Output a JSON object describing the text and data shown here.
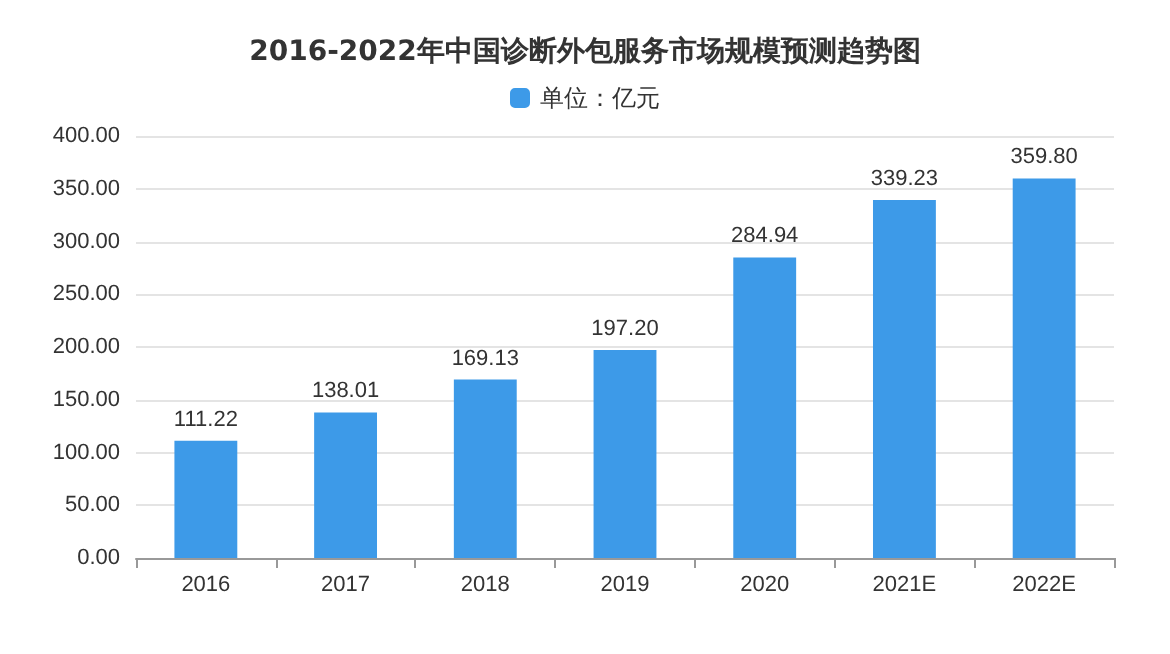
{
  "chart_data": {
    "type": "bar",
    "title": "2016-2022年中国诊断外包服务市场规模预测趋势图",
    "categories": [
      "2016",
      "2017",
      "2018",
      "2019",
      "2020",
      "2021E",
      "2022E"
    ],
    "series": [
      {
        "name": "单位：亿元",
        "color": "#3d9ae8",
        "values": [
          111.22,
          138.01,
          169.13,
          197.2,
          284.94,
          339.23,
          359.8
        ]
      }
    ],
    "value_labels": [
      "111.22",
      "138.01",
      "169.13",
      "197.20",
      "284.94",
      "339.23",
      "359.80"
    ],
    "ylim": [
      0,
      400
    ],
    "yticks": [
      {
        "value": 0,
        "label": "0.00"
      },
      {
        "value": 50,
        "label": "50.00"
      },
      {
        "value": 100,
        "label": "100.00"
      },
      {
        "value": 150,
        "label": "150.00"
      },
      {
        "value": 200,
        "label": "200.00"
      },
      {
        "value": 250,
        "label": "250.00"
      },
      {
        "value": 300,
        "label": "300.00"
      },
      {
        "value": 350,
        "label": "350.00"
      },
      {
        "value": 400,
        "label": "400.00"
      }
    ],
    "grid": "y",
    "legend": "top"
  }
}
